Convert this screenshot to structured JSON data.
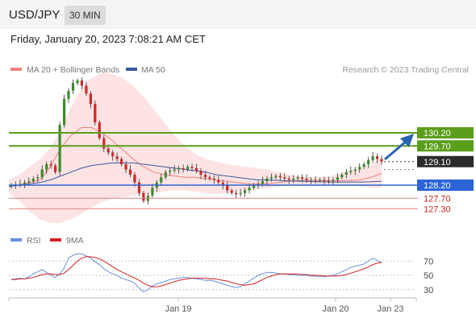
{
  "header": {
    "pair": "USD/JPY",
    "timeframe": "30 MIN"
  },
  "timestamp": "Friday, January 20, 2023 7:08:21 AM CET",
  "legend": {
    "ma20": "MA 20 + Bollinger Bands",
    "ma50": "MA 50",
    "copyright": "Research © 2023 Trading Central"
  },
  "rsi_legend": {
    "rsi": "RSI",
    "ma9": "9MA"
  },
  "colors": {
    "resistance": "#5a9e1b",
    "pivot": "#2a64d6",
    "support": "#e08080",
    "support_text": "#cc2222",
    "price_box": "#2b2b2b",
    "ma20": "#f08080",
    "ma50": "#3a5aa0",
    "band_fill": "#fde0e0",
    "candle_up": "#3c8a2c",
    "candle_down": "#cc2a2a",
    "rsi_line": "#6a8fe0",
    "rsi_ma": "#d42020",
    "arrow": "#2a64b0"
  },
  "chart_data": [
    {
      "type": "candlestick",
      "title": "USD/JPY",
      "x_ticks": [
        "Jan 19",
        "Jan 20",
        "Jan 23"
      ],
      "ylim": [
        125.9,
        133.6
      ],
      "levels": [
        {
          "label": "130.20",
          "value": 130.2,
          "kind": "resistance"
        },
        {
          "label": "129.70",
          "value": 129.7,
          "kind": "resistance"
        },
        {
          "label": "129.10",
          "value": 129.1,
          "kind": "current"
        },
        {
          "label": "128.20",
          "value": 128.2,
          "kind": "pivot"
        },
        {
          "label": "127.70",
          "value": 127.7,
          "kind": "support"
        },
        {
          "label": "127.30",
          "value": 127.3,
          "kind": "support"
        }
      ],
      "close": [
        128.2,
        128.22,
        128.25,
        128.3,
        128.35,
        128.45,
        128.5,
        128.8,
        129.0,
        128.95,
        128.7,
        130.5,
        131.5,
        131.8,
        132.1,
        132.2,
        132.0,
        131.7,
        131.3,
        130.6,
        130.0,
        129.6,
        129.45,
        129.3,
        129.2,
        129.0,
        128.8,
        128.6,
        128.3,
        127.9,
        127.6,
        127.8,
        128.1,
        128.3,
        128.5,
        128.7,
        128.75,
        128.8,
        128.85,
        128.8,
        128.9,
        128.85,
        128.75,
        128.6,
        128.5,
        128.45,
        128.4,
        128.3,
        128.2,
        128.0,
        127.9,
        127.85,
        127.9,
        128.0,
        128.1,
        128.2,
        128.25,
        128.35,
        128.45,
        128.5,
        128.55,
        128.5,
        128.45,
        128.4,
        128.45,
        128.5,
        128.45,
        128.4,
        128.4,
        128.38,
        128.4,
        128.36,
        128.35,
        128.4,
        128.5,
        128.6,
        128.7,
        128.75,
        128.8,
        128.9,
        129.0,
        129.15,
        129.3,
        129.2,
        129.1
      ],
      "bollinger_upper": [
        128.4,
        128.6,
        128.9,
        129.2,
        129.6,
        130.3,
        131.2,
        131.9,
        132.3,
        132.5,
        132.45,
        132.3,
        132.0,
        131.6,
        131.1,
        130.6,
        130.1,
        129.7,
        129.4,
        129.2,
        129.1,
        129.0,
        128.95,
        128.9,
        128.85,
        128.8,
        128.7,
        128.6,
        128.55,
        128.5,
        128.5,
        128.55,
        128.65,
        128.75,
        128.85,
        129.0,
        129.25
      ],
      "bollinger_lower": [
        127.9,
        127.6,
        127.2,
        126.9,
        126.75,
        126.75,
        126.9,
        127.1,
        127.35,
        127.55,
        127.7,
        127.75,
        127.8,
        127.85,
        127.9,
        127.95,
        128.0,
        128.0,
        127.95,
        127.9,
        127.85,
        127.9,
        127.95,
        128.0,
        128.05,
        128.1,
        128.15,
        128.2,
        128.2,
        128.2,
        128.2,
        128.2,
        128.2,
        128.18,
        128.15,
        128.1,
        128.1
      ],
      "ma20": [
        128.15,
        128.2,
        128.3,
        128.4,
        128.9,
        129.6,
        130.1,
        130.4,
        130.4,
        130.2,
        129.9,
        129.55,
        129.2,
        128.9,
        128.7,
        128.6,
        128.55,
        128.5,
        128.5,
        128.45,
        128.4,
        128.35,
        128.3,
        128.25,
        128.25,
        128.25,
        128.3,
        128.35,
        128.38,
        128.38,
        128.37,
        128.37,
        128.37,
        128.38,
        128.4,
        128.5,
        128.65
      ],
      "ma50": [
        128.15,
        128.2,
        128.25,
        128.3,
        128.4,
        128.55,
        128.7,
        128.85,
        128.95,
        129.0,
        129.05,
        129.05,
        129.05,
        129.0,
        128.95,
        128.9,
        128.85,
        128.8,
        128.75,
        128.7,
        128.6,
        128.55,
        128.5,
        128.45,
        128.4,
        128.4,
        128.38,
        128.36,
        128.35,
        128.34,
        128.33,
        128.32,
        128.32,
        128.32,
        128.32,
        128.33,
        128.35
      ]
    },
    {
      "type": "line",
      "title": "RSI",
      "y_ticks": [
        "70",
        "50",
        "30"
      ],
      "ylim": [
        18,
        86
      ],
      "series": [
        {
          "name": "RSI",
          "values": [
            44,
            45,
            46,
            45,
            48,
            52,
            55,
            58,
            54,
            50,
            47,
            52,
            60,
            74,
            78,
            80,
            80,
            77,
            74,
            69,
            65,
            59,
            55,
            52,
            50,
            46,
            44,
            42,
            39,
            32,
            27,
            30,
            35,
            38,
            40,
            42,
            44,
            45,
            46,
            47,
            47,
            46,
            45,
            44,
            43,
            43,
            42,
            40,
            38,
            36,
            34,
            33,
            34,
            38,
            42,
            46,
            50,
            52,
            54,
            54,
            53,
            52,
            52,
            51,
            51,
            50,
            50,
            50,
            49,
            49,
            48,
            48,
            49,
            50,
            52,
            55,
            58,
            61,
            63,
            64,
            66,
            70,
            74,
            71,
            68
          ]
        },
        {
          "name": "9MA",
          "values": [
            44,
            44,
            45,
            45,
            46,
            47,
            49,
            51,
            52,
            52,
            51,
            51,
            53,
            58,
            64,
            70,
            74,
            76,
            76,
            75,
            73,
            70,
            66,
            62,
            58,
            55,
            52,
            49,
            46,
            43,
            39,
            36,
            34,
            34,
            35,
            37,
            39,
            41,
            43,
            44,
            45,
            46,
            46,
            46,
            46,
            45,
            45,
            44,
            43,
            42,
            40,
            38,
            37,
            36,
            37,
            38,
            41,
            44,
            47,
            49,
            51,
            52,
            52,
            52,
            52,
            52,
            51,
            51,
            50,
            50,
            50,
            49,
            49,
            49,
            49,
            50,
            51,
            53,
            55,
            57,
            59,
            62,
            65,
            67,
            68
          ]
        }
      ]
    }
  ]
}
